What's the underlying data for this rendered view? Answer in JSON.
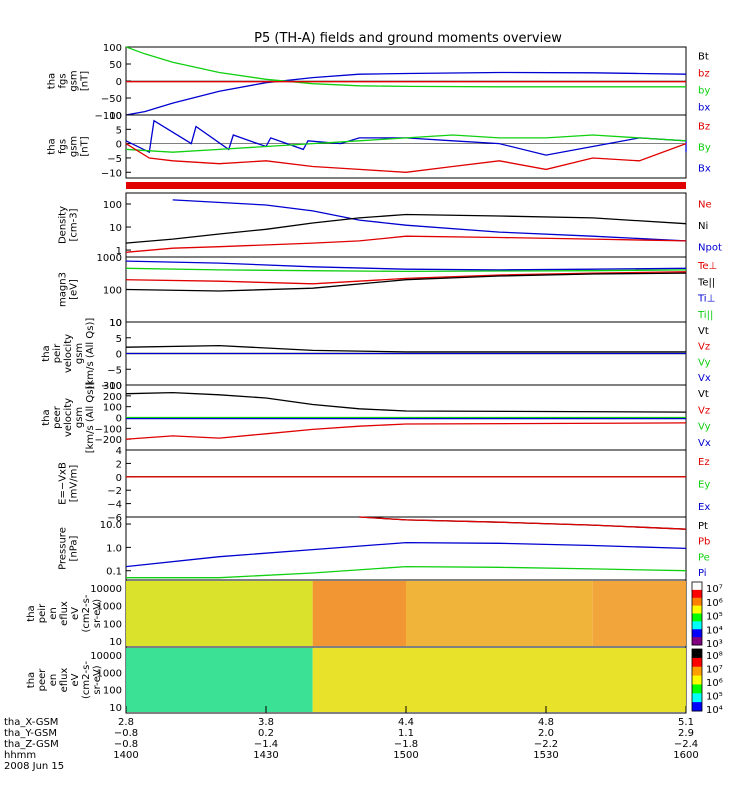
{
  "title": "P5 (TH-A) fields and ground moments overview",
  "colors": {
    "black": "#000000",
    "red": "#e00000",
    "green": "#10d010",
    "blue": "#0000d0",
    "orange": "#f08020",
    "yellow": "#f8f000"
  },
  "chart_data": [
    {
      "type": "line",
      "ylabel": [
        "tha",
        "fgs",
        "gsm",
        "[nT]"
      ],
      "ylim": [
        -100,
        100
      ],
      "yticks": [
        100,
        50,
        0,
        -50,
        -100
      ],
      "legend": [
        {
          "name": "Bt",
          "color": "#000000"
        },
        {
          "name": "bz",
          "color": "#e00000"
        },
        {
          "name": "by",
          "color": "#10d010"
        },
        {
          "name": "bx",
          "color": "#0000d0"
        }
      ],
      "series": [
        {
          "name": "bx",
          "color": "#0000d0",
          "x": [
            1400,
            1404,
            1410,
            1420,
            1430,
            1440,
            1450,
            1500,
            1520,
            1540,
            1550,
            1600
          ],
          "y": [
            -100,
            -90,
            -65,
            -30,
            -5,
            10,
            20,
            22,
            25,
            24,
            22,
            20
          ]
        },
        {
          "name": "by",
          "color": "#10d010",
          "x": [
            1400,
            1404,
            1410,
            1420,
            1430,
            1440,
            1450,
            1500,
            1520,
            1540,
            1560,
            1600
          ],
          "y": [
            100,
            80,
            55,
            25,
            5,
            -8,
            -14,
            -16,
            -17,
            -17,
            -17,
            -17
          ]
        },
        {
          "name": "bz",
          "color": "#e00000",
          "x": [
            1400,
            1600
          ],
          "y": [
            -2,
            -2
          ]
        }
      ]
    },
    {
      "type": "line",
      "ylabel": [
        "tha",
        "fgs",
        "gsm",
        "[nT]"
      ],
      "ylim": [
        -12,
        10
      ],
      "yticks": [
        10,
        5,
        0,
        -5,
        -10
      ],
      "legend": [
        {
          "name": "Bz",
          "color": "#e00000"
        },
        {
          "name": "By",
          "color": "#10d010"
        },
        {
          "name": "Bx",
          "color": "#0000d0"
        }
      ],
      "series": [
        {
          "name": "Bx",
          "color": "#0000d0",
          "x": [
            1400,
            1405,
            1406,
            1414,
            1415,
            1422,
            1423,
            1430,
            1431,
            1438,
            1439,
            1446,
            1450,
            1500,
            1510,
            1520,
            1530,
            1540,
            1550,
            1560,
            1600
          ],
          "y": [
            1,
            -3,
            8,
            0,
            6,
            -2,
            3,
            -1,
            2,
            -2,
            1,
            0,
            2,
            2,
            1,
            0,
            -4,
            -1,
            2,
            1,
            -3
          ]
        },
        {
          "name": "By",
          "color": "#10d010",
          "x": [
            1400,
            1410,
            1420,
            1430,
            1440,
            1450,
            1500,
            1510,
            1520,
            1530,
            1540,
            1550,
            1600
          ],
          "y": [
            -2,
            -3,
            -2,
            -1,
            0,
            1,
            2,
            3,
            2,
            2,
            3,
            2,
            1
          ]
        },
        {
          "name": "Bz",
          "color": "#e00000",
          "x": [
            1400,
            1405,
            1410,
            1420,
            1430,
            1440,
            1450,
            1500,
            1510,
            1520,
            1530,
            1540,
            1550,
            1600
          ],
          "y": [
            0,
            -5,
            -6,
            -7,
            -6,
            -8,
            -9,
            -10,
            -8,
            -6,
            -9,
            -5,
            -6,
            0
          ]
        }
      ]
    },
    {
      "type": "line",
      "yscale": "log",
      "ylabel": [
        "Density",
        "[cm-3]"
      ],
      "ylim": [
        0.5,
        300
      ],
      "yticks": [
        100,
        10,
        1
      ],
      "yticklabels": [
        "100",
        "10",
        "1"
      ],
      "legend": [
        {
          "name": "Ne",
          "color": "#e00000"
        },
        {
          "name": "Ni",
          "color": "#000000"
        },
        {
          "name": "Npot",
          "color": "#0000d0"
        }
      ],
      "series": [
        {
          "name": "Npot",
          "color": "#0000d0",
          "x": [
            1410,
            1430,
            1440,
            1450,
            1500,
            1520,
            1540,
            1600
          ],
          "y": [
            150,
            90,
            50,
            20,
            12,
            6,
            4,
            2.5
          ]
        },
        {
          "name": "Ni",
          "color": "#000000",
          "x": [
            1400,
            1410,
            1420,
            1430,
            1440,
            1450,
            1500,
            1520,
            1540,
            1600
          ],
          "y": [
            2,
            3,
            5,
            8,
            15,
            25,
            35,
            30,
            25,
            14
          ]
        },
        {
          "name": "Ne",
          "color": "#e00000",
          "x": [
            1400,
            1410,
            1420,
            1440,
            1450,
            1500,
            1520,
            1540,
            1600
          ],
          "y": [
            0.8,
            1.2,
            1.4,
            2,
            2.5,
            4,
            3.5,
            3,
            2.5
          ]
        }
      ]
    },
    {
      "type": "line",
      "yscale": "log",
      "ylabel": [
        "magn3",
        "[eV]"
      ],
      "ylim": [
        10,
        1000
      ],
      "yticks": [
        1000,
        100,
        10
      ],
      "yticklabels": [
        "1000",
        "100",
        "10"
      ],
      "legend": [
        {
          "name": "Te⊥",
          "color": "#e00000"
        },
        {
          "name": "Te||",
          "color": "#000000"
        },
        {
          "name": "Ti⊥",
          "color": "#0000d0"
        },
        {
          "name": "Ti||",
          "color": "#10d010"
        }
      ],
      "series": [
        {
          "name": "Ti⊥",
          "color": "#0000d0",
          "x": [
            1400,
            1420,
            1440,
            1500,
            1520,
            1540,
            1600
          ],
          "y": [
            750,
            650,
            500,
            420,
            400,
            420,
            450
          ]
        },
        {
          "name": "Ti||",
          "color": "#10d010",
          "x": [
            1400,
            1420,
            1440,
            1500,
            1520,
            1540,
            1600
          ],
          "y": [
            450,
            400,
            380,
            360,
            370,
            380,
            400
          ]
        },
        {
          "name": "Te⊥",
          "color": "#e00000",
          "x": [
            1400,
            1420,
            1440,
            1500,
            1520,
            1540,
            1600
          ],
          "y": [
            200,
            180,
            150,
            220,
            280,
            320,
            350
          ]
        },
        {
          "name": "Te||",
          "color": "#000000",
          "x": [
            1400,
            1420,
            1440,
            1500,
            1520,
            1540,
            1600
          ],
          "y": [
            100,
            90,
            110,
            200,
            260,
            300,
            320
          ]
        }
      ]
    },
    {
      "type": "line",
      "ylabel": [
        "tha",
        "peir",
        "velocity",
        "gsm",
        "[km/s (All Qs)]"
      ],
      "ylim": [
        -10,
        10
      ],
      "yticks": [
        10,
        5,
        0,
        -5,
        -10
      ],
      "legend": [
        {
          "name": "Vt",
          "color": "#000000"
        },
        {
          "name": "Vz",
          "color": "#e00000"
        },
        {
          "name": "Vy",
          "color": "#10d010"
        },
        {
          "name": "Vx",
          "color": "#0000d0"
        }
      ],
      "series": [
        {
          "name": "Vt",
          "color": "#000000",
          "x": [
            1400,
            1420,
            1440,
            1500,
            1600
          ],
          "y": [
            2,
            2.5,
            1,
            0.5,
            0.5
          ]
        },
        {
          "name": "Vz",
          "color": "#e00000",
          "x": [
            1400,
            1600
          ],
          "y": [
            0,
            0
          ]
        },
        {
          "name": "Vy",
          "color": "#10d010",
          "x": [
            1400,
            1600
          ],
          "y": [
            0,
            0
          ]
        },
        {
          "name": "Vx",
          "color": "#0000d0",
          "x": [
            1400,
            1600
          ],
          "y": [
            0,
            0
          ]
        }
      ]
    },
    {
      "type": "line",
      "ylabel": [
        "tha",
        "peer",
        "velocity",
        "gsm",
        "[km/s (All Qs)]"
      ],
      "ylim": [
        -300,
        300
      ],
      "yticks": [
        300,
        200,
        100,
        0,
        -100,
        -200
      ],
      "yticklabels": [
        "300",
        "200",
        "100",
        "0",
        "−100",
        "−200"
      ],
      "legend": [
        {
          "name": "Vt",
          "color": "#000000"
        },
        {
          "name": "Vz",
          "color": "#e00000"
        },
        {
          "name": "Vy",
          "color": "#10d010"
        },
        {
          "name": "Vx",
          "color": "#0000d0"
        }
      ],
      "series": [
        {
          "name": "Vt",
          "color": "#000000",
          "x": [
            1400,
            1410,
            1420,
            1430,
            1440,
            1450,
            1500,
            1600
          ],
          "y": [
            220,
            230,
            210,
            180,
            120,
            80,
            60,
            50
          ]
        },
        {
          "name": "Vy",
          "color": "#10d010",
          "x": [
            1400,
            1600
          ],
          "y": [
            0,
            0
          ]
        },
        {
          "name": "Vx",
          "color": "#0000d0",
          "x": [
            1400,
            1600
          ],
          "y": [
            -10,
            -10
          ]
        },
        {
          "name": "Vz",
          "color": "#e00000",
          "x": [
            1400,
            1410,
            1420,
            1430,
            1440,
            1450,
            1500,
            1600
          ],
          "y": [
            -200,
            -170,
            -190,
            -150,
            -110,
            -80,
            -60,
            -50
          ]
        }
      ]
    },
    {
      "type": "line",
      "ylabel": [
        "E=−VxB",
        "[mV/m]"
      ],
      "ylim": [
        -6,
        4
      ],
      "yticks": [
        4,
        2,
        0,
        -2,
        -4,
        -6
      ],
      "legend": [
        {
          "name": "Ez",
          "color": "#e00000"
        },
        {
          "name": "Ey",
          "color": "#10d010"
        },
        {
          "name": "Ex",
          "color": "#0000d0"
        }
      ],
      "series": [
        {
          "name": "Ex",
          "color": "#0000d0",
          "x": [
            1400,
            1600
          ],
          "y": [
            0,
            0
          ]
        },
        {
          "name": "Ey",
          "color": "#10d010",
          "x": [
            1400,
            1600
          ],
          "y": [
            0,
            0
          ]
        },
        {
          "name": "Ez",
          "color": "#e00000",
          "x": [
            1400,
            1600
          ],
          "y": [
            0,
            0
          ]
        }
      ]
    },
    {
      "type": "line",
      "yscale": "log",
      "ylabel": [
        "Pressure",
        "[nPa]"
      ],
      "ylim": [
        0.04,
        20
      ],
      "yticks": [
        10,
        1,
        0.1
      ],
      "yticklabels": [
        "10.0",
        "1.0",
        "0.1"
      ],
      "legend": [
        {
          "name": "Pt",
          "color": "#000000"
        },
        {
          "name": "Pb",
          "color": "#e00000"
        },
        {
          "name": "Pe",
          "color": "#10d010"
        },
        {
          "name": "Pi",
          "color": "#0000d0"
        }
      ],
      "series": [
        {
          "name": "Pt",
          "color": "#000000",
          "x": [
            1450,
            1500,
            1520,
            1540,
            1600
          ],
          "y": [
            20,
            15,
            12,
            9,
            6
          ]
        },
        {
          "name": "Pb",
          "color": "#e00000",
          "x": [
            1450,
            1500,
            1520,
            1540,
            1600
          ],
          "y": [
            20,
            15,
            12,
            9,
            6
          ]
        },
        {
          "name": "Pi",
          "color": "#0000d0",
          "x": [
            1400,
            1420,
            1440,
            1500,
            1520,
            1540,
            1600
          ],
          "y": [
            0.15,
            0.4,
            0.8,
            1.6,
            1.5,
            1.2,
            0.9
          ]
        },
        {
          "name": "Pe",
          "color": "#10d010",
          "x": [
            1400,
            1420,
            1440,
            1500,
            1520,
            1540,
            1600
          ],
          "y": [
            0.05,
            0.05,
            0.08,
            0.15,
            0.14,
            0.12,
            0.1
          ]
        }
      ]
    },
    {
      "type": "heatmap",
      "ylabel": [
        "tha",
        "peir",
        "en",
        "eflux",
        "eV",
        "(cm2-s-",
        "sr-eV)"
      ],
      "yticks": [
        "10000",
        "1000",
        "100",
        "10"
      ],
      "colorbar_ticks": [
        "10⁷",
        "10⁶",
        "10⁵",
        "10⁴",
        "10³"
      ],
      "description_bands": [
        {
          "x0": 1400,
          "x1": 1440,
          "color": "#d8e020"
        },
        {
          "x0": 1440,
          "x1": 1500,
          "color": "#f09028"
        },
        {
          "x0": 1500,
          "x1": 1540,
          "color": "#f0b030"
        },
        {
          "x0": 1540,
          "x1": 1600,
          "color": "#f0a030"
        }
      ]
    },
    {
      "type": "heatmap",
      "ylabel": [
        "tha",
        "peer",
        "en",
        "eflux",
        "eV",
        "(cm2-s-",
        "sr-eV)"
      ],
      "yticks": [
        "10000",
        "1000",
        "100",
        "10"
      ],
      "colorbar_ticks": [
        "10⁸",
        "10⁷",
        "10⁶",
        "10⁵",
        "10⁴"
      ],
      "description_bands": [
        {
          "x0": 1400,
          "x1": 1440,
          "color": "#30e090"
        },
        {
          "x0": 1440,
          "x1": 1600,
          "color": "#e8e020"
        }
      ]
    }
  ],
  "xaxis": {
    "row_labels": [
      "tha_X-GSM",
      "tha_Y-GSM",
      "tha_Z-GSM",
      "hhmm",
      "2008 Jun 15"
    ],
    "ticks": [
      {
        "v": [
          "2.8",
          "−0.8",
          "−0.8",
          "1400"
        ]
      },
      {
        "v": [
          "3.8",
          "0.2",
          "−1.4",
          "1430"
        ]
      },
      {
        "v": [
          "4.4",
          "1.1",
          "−1.8",
          "1500"
        ]
      },
      {
        "v": [
          "4.8",
          "2.0",
          "−2.2",
          "1530"
        ]
      },
      {
        "v": [
          "5.1",
          "2.9",
          "−2.4",
          "1600"
        ]
      }
    ],
    "xlim": [
      1400,
      1600
    ]
  }
}
